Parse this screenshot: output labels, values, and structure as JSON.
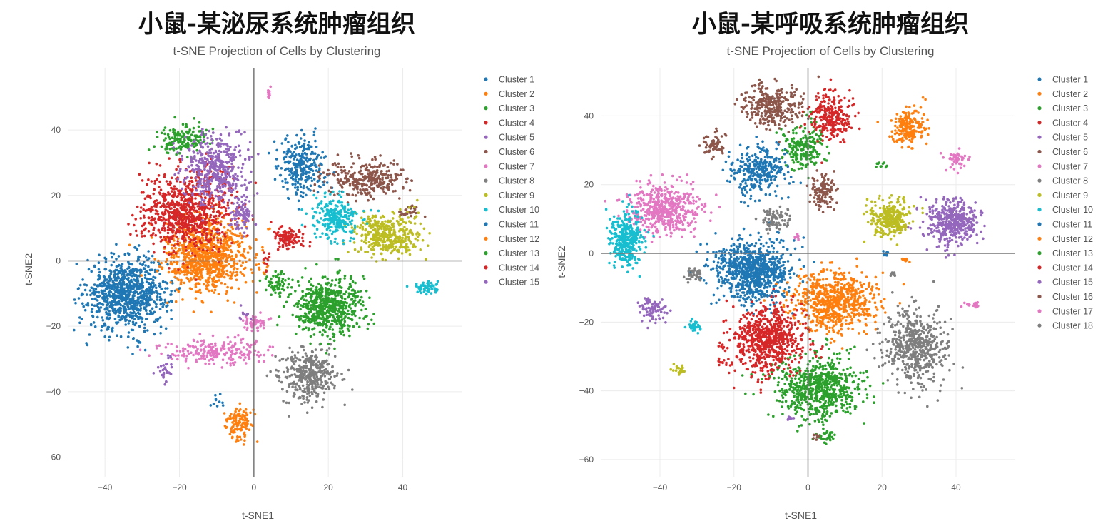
{
  "chart_data": [
    {
      "type": "scatter",
      "main_title": "小鼠-某泌尿系统肿瘤组织",
      "title": "t-SNE Projection of Cells by Clustering",
      "xlabel": "t-SNE1",
      "ylabel": "t-SNE2",
      "xlim": [
        -50,
        56
      ],
      "ylim": [
        -66,
        59
      ],
      "xticks": [
        -40,
        -20,
        0,
        20,
        40
      ],
      "yticks": [
        -60,
        -40,
        -20,
        0,
        20,
        40
      ],
      "grid": true,
      "legend_position": "right",
      "series": [
        {
          "name": "Cluster 1",
          "color": "#1f77b4",
          "clusters": [
            [
              -34,
              -10,
              10,
              10,
              900
            ],
            [
              13,
              29,
              6,
              8,
              280
            ]
          ]
        },
        {
          "name": "Cluster 2",
          "color": "#ff7f0e",
          "clusters": [
            [
              -13,
              2,
              10,
              10,
              900
            ],
            [
              -4,
              -50,
              3,
              5,
              120
            ]
          ]
        },
        {
          "name": "Cluster 3",
          "color": "#2ca02c",
          "clusters": [
            [
              -19,
              37,
              6,
              4,
              170
            ],
            [
              6,
              -7,
              3,
              3,
              60
            ]
          ]
        },
        {
          "name": "Cluster 4",
          "color": "#d62728",
          "clusters": [
            [
              -18,
              15,
              11,
              11,
              800
            ],
            [
              9,
              7,
              4,
              3,
              110
            ]
          ]
        },
        {
          "name": "Cluster 5",
          "color": "#9467bd",
          "clusters": [
            [
              -10,
              28,
              8,
              9,
              450
            ],
            [
              -3,
              14,
              3,
              6,
              90
            ],
            [
              -24,
              -34,
              2,
              4,
              30
            ]
          ]
        },
        {
          "name": "Cluster 6",
          "color": "#8c564b",
          "clusters": [
            [
              30,
              25,
              9,
              5,
              300
            ],
            [
              42,
              15,
              3,
              2,
              30
            ]
          ]
        },
        {
          "name": "Cluster 7",
          "color": "#e377c2",
          "clusters": [
            [
              -10,
              -28,
              12,
              4,
              220
            ],
            [
              0,
              -19,
              3,
              2,
              50
            ],
            [
              4,
              51,
              0.3,
              2,
              12
            ]
          ]
        },
        {
          "name": "Cluster 8",
          "color": "#7f7f7f",
          "clusters": [
            [
              15,
              -35,
              7,
              7,
              380
            ]
          ]
        },
        {
          "name": "Cluster 9",
          "color": "#bcbd22",
          "clusters": [
            [
              36,
              8,
              8,
              6,
              380
            ]
          ]
        },
        {
          "name": "Cluster 10",
          "color": "#17becf",
          "clusters": [
            [
              22,
              13,
              6,
              6,
              240
            ],
            [
              46,
              -8,
              3,
              2,
              60
            ]
          ]
        },
        {
          "name": "Cluster 11",
          "color": "#1f77b4",
          "clusters": [
            [
              -10,
              -43,
              2,
              2,
              10
            ]
          ]
        },
        {
          "name": "Cluster 12",
          "color": "#ff7f0e",
          "clusters": [
            [
              2,
              -2,
              2,
              2,
              10
            ]
          ]
        },
        {
          "name": "Cluster 13",
          "color": "#2ca02c",
          "clusters": [
            [
              20,
              -14,
              8,
              8,
              620
            ]
          ]
        },
        {
          "name": "Cluster 14",
          "color": "#d62728",
          "clusters": [
            [
              3,
              0,
              2,
              2,
              10
            ]
          ]
        },
        {
          "name": "Cluster 15",
          "color": "#9467bd",
          "clusters": [
            [
              -3,
              -16,
              1.5,
              2,
              10
            ]
          ]
        }
      ]
    },
    {
      "type": "scatter",
      "main_title": "小鼠-某呼吸系统肿瘤组织",
      "title": "t-SNE Projection of Cells by Clustering",
      "xlabel": "t-SNE1",
      "ylabel": "t-SNE2",
      "xlim": [
        -56,
        56
      ],
      "ylim": [
        -65,
        54
      ],
      "xticks": [
        -40,
        -20,
        0,
        20,
        40
      ],
      "yticks": [
        -60,
        -40,
        -20,
        0,
        20,
        40
      ],
      "grid": true,
      "legend_position": "right",
      "series": [
        {
          "name": "Cluster 1",
          "color": "#1f77b4",
          "clusters": [
            [
              -15,
              -5,
              9,
              8,
              850
            ],
            [
              -13,
              24,
              7,
              6,
              300
            ]
          ]
        },
        {
          "name": "Cluster 2",
          "color": "#ff7f0e",
          "clusters": [
            [
              7,
              -14,
              10,
              8,
              700
            ],
            [
              27,
              37,
              4,
              5,
              200
            ]
          ]
        },
        {
          "name": "Cluster 3",
          "color": "#2ca02c",
          "clusters": [
            [
              3,
              -39,
              10,
              8,
              700
            ],
            [
              -1,
              31,
              5,
              6,
              200
            ],
            [
              5,
              -53,
              2,
              1.5,
              30
            ]
          ]
        },
        {
          "name": "Cluster 4",
          "color": "#d62728",
          "clusters": [
            [
              -11,
              -25,
              9,
              9,
              700
            ],
            [
              6,
              40,
              5,
              7,
              250
            ]
          ]
        },
        {
          "name": "Cluster 5",
          "color": "#9467bd",
          "clusters": [
            [
              39,
              9,
              7,
              6,
              400
            ],
            [
              -42,
              -16,
              3,
              3,
              80
            ]
          ]
        },
        {
          "name": "Cluster 6",
          "color": "#8c564b",
          "clusters": [
            [
              -10,
              43,
              7,
              6,
              300
            ],
            [
              -25,
              32,
              3,
              3,
              60
            ],
            [
              4,
              18,
              3,
              5,
              110
            ]
          ]
        },
        {
          "name": "Cluster 7",
          "color": "#e377c2",
          "clusters": [
            [
              -39,
              13,
              9,
              7,
              500
            ],
            [
              40,
              27,
              3,
              3,
              50
            ],
            [
              45,
              -15,
              3,
              0.8,
              20
            ]
          ]
        },
        {
          "name": "Cluster 8",
          "color": "#7f7f7f",
          "clusters": [
            [
              29,
              -27,
              7,
              10,
              550
            ],
            [
              -9,
              10,
              3,
              3,
              80
            ],
            [
              -31,
              -6,
              2,
              2,
              40
            ]
          ]
        },
        {
          "name": "Cluster 9",
          "color": "#bcbd22",
          "clusters": [
            [
              22,
              10,
              5,
              5,
              300
            ],
            [
              -35,
              -34,
              1.5,
              1.5,
              20
            ]
          ]
        },
        {
          "name": "Cluster 10",
          "color": "#17becf",
          "clusters": [
            [
              -49,
              4,
              4,
              7,
              350
            ],
            [
              -31,
              -21,
              1.5,
              1.5,
              30
            ]
          ]
        },
        {
          "name": "Cluster 11",
          "color": "#1f77b4",
          "clusters": [
            [
              21,
              0,
              1,
              1,
              10
            ]
          ]
        },
        {
          "name": "Cluster 12",
          "color": "#ff7f0e",
          "clusters": [
            [
              26,
              -2,
              1,
              1,
              10
            ]
          ]
        },
        {
          "name": "Cluster 13",
          "color": "#2ca02c",
          "clusters": [
            [
              20,
              26,
              2,
              1,
              10
            ]
          ]
        },
        {
          "name": "Cluster 14",
          "color": "#d62728",
          "clusters": [
            [
              -23,
              -32,
              1,
              1,
              8
            ]
          ]
        },
        {
          "name": "Cluster 15",
          "color": "#9467bd",
          "clusters": [
            [
              -5,
              -48,
              1,
              1,
              8
            ]
          ]
        },
        {
          "name": "Cluster 16",
          "color": "#8c564b",
          "clusters": [
            [
              2,
              -53,
              1,
              1,
              8
            ]
          ]
        },
        {
          "name": "Cluster 17",
          "color": "#e377c2",
          "clusters": [
            [
              -3,
              5,
              1,
              1,
              8
            ]
          ]
        },
        {
          "name": "Cluster 18",
          "color": "#7f7f7f",
          "clusters": [
            [
              23,
              -6,
              1,
              1,
              8
            ]
          ]
        }
      ]
    }
  ]
}
